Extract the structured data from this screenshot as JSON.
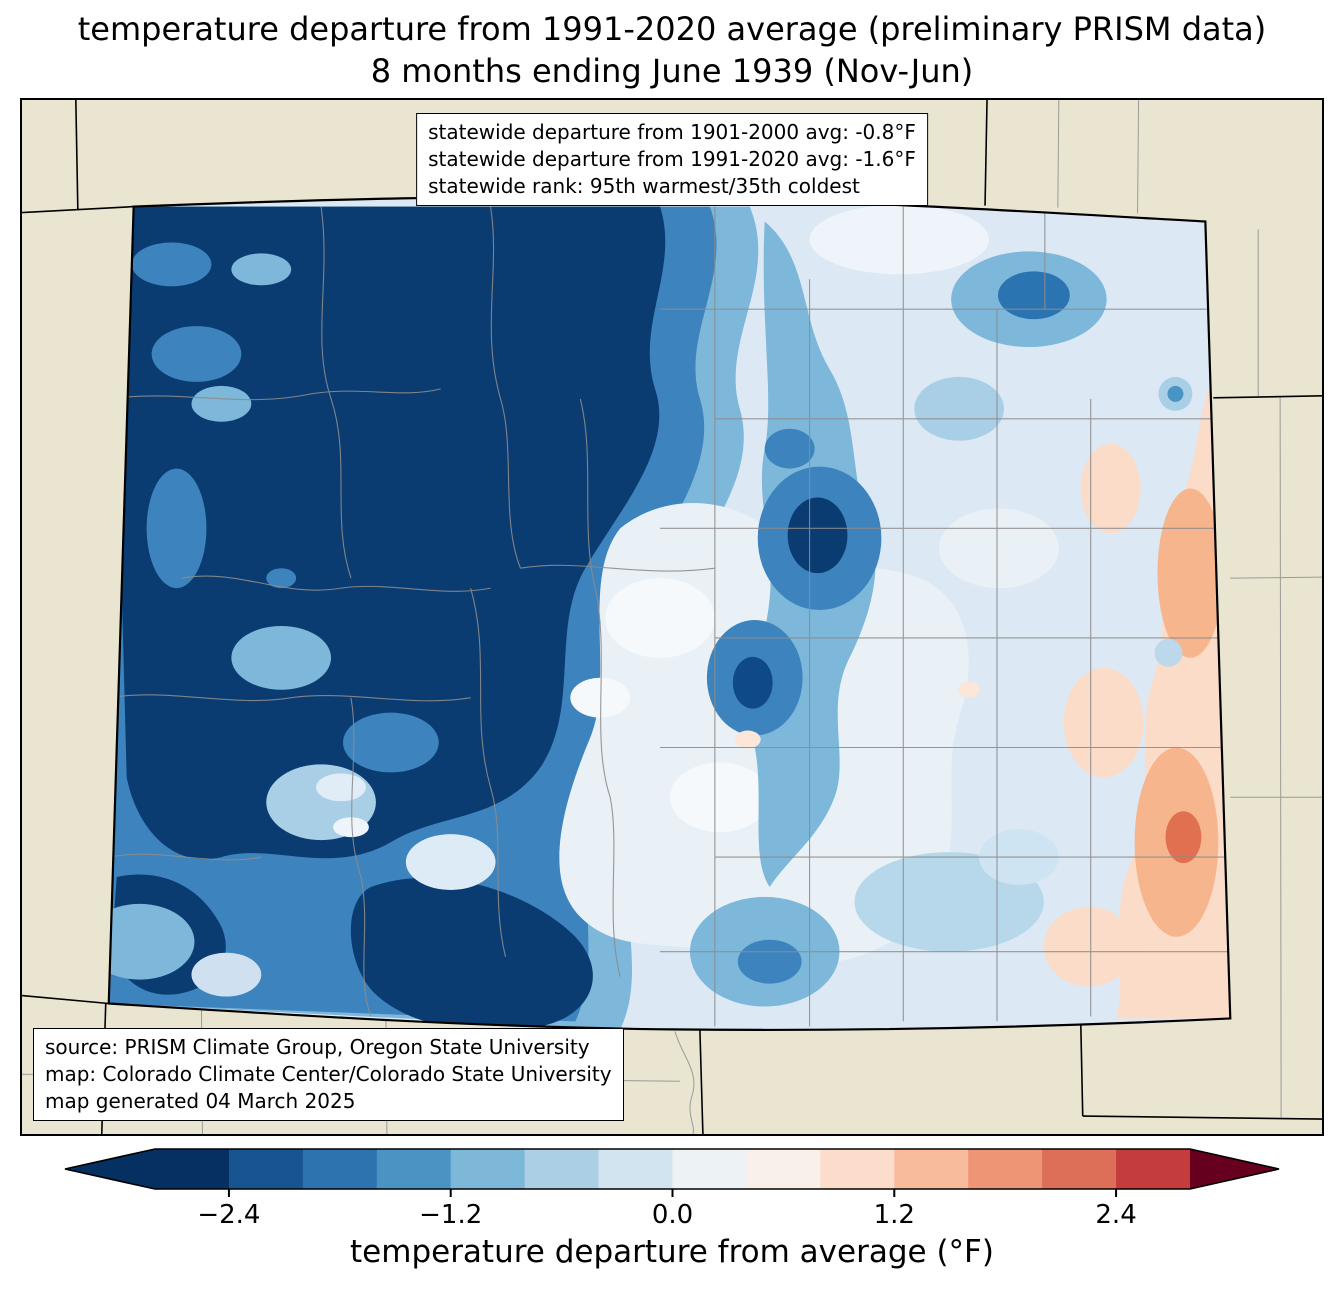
{
  "title": {
    "line1": "temperature departure from 1991-2020 average (preliminary PRISM data)",
    "line2": "8 months ending June 1939 (Nov-Jun)"
  },
  "stats_box": {
    "line1": "statewide departure from 1901-2000 avg: -0.8°F",
    "line2": "statewide departure from 1991-2020 avg: -1.6°F",
    "line3": "statewide rank: 95th warmest/35th coldest"
  },
  "source_box": {
    "line1": "source: PRISM Climate Group, Oregon State University",
    "line2": "map: Colorado Climate Center/Colorado State University",
    "line3": "map generated 04 March 2025"
  },
  "colorbar": {
    "label": "temperature departure from average (°F)",
    "min": -2.8,
    "max": 2.8,
    "ticks": [
      {
        "value": -2.4,
        "label": "−2.4"
      },
      {
        "value": -1.2,
        "label": "−1.2"
      },
      {
        "value": 0.0,
        "label": "0.0"
      },
      {
        "value": 1.2,
        "label": "1.2"
      },
      {
        "value": 2.4,
        "label": "2.4"
      }
    ],
    "segment_colors": [
      "#053061",
      "#18548f",
      "#2c73af",
      "#4a94c4",
      "#7db8d8",
      "#abcfe5",
      "#d2e4f0",
      "#edf2f5",
      "#faf0ea",
      "#fcdccb",
      "#f8bc9c",
      "#ee9576",
      "#dd6f58",
      "#c43c3b"
    ],
    "left_arrow_color": "#053061",
    "right_arrow_color": "#67001f"
  },
  "map_colors": {
    "outside_background": "#e9e5d0",
    "coldest_fill": "#0a3c72",
    "warmest_spot_fill": "#e0704f",
    "county_border": "#8c8c8c",
    "state_border": "#000000"
  }
}
